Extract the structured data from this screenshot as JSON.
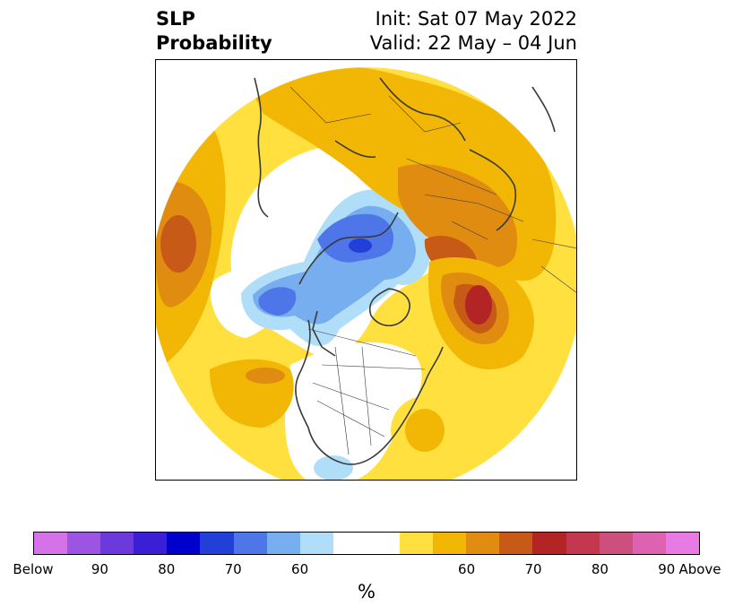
{
  "title": {
    "left_line1": "SLP",
    "left_line2": "Probability",
    "right_line1": "Init: Sat 07 May 2022",
    "right_line2": "Valid: 22 May – 04 Jun"
  },
  "colorbar": {
    "colors": [
      "#d672e8",
      "#9c55e3",
      "#6b39dc",
      "#3a1fd6",
      "#0000cc",
      "#2240d8",
      "#4e76e8",
      "#77aef0",
      "#b0def9",
      "#ffffff",
      "#ffe03f",
      "#f2b705",
      "#e08c10",
      "#c85a18",
      "#b32425",
      "#c4384f",
      "#cc4f7e",
      "#dd62b0",
      "#e87ae3"
    ],
    "labels": [
      "Below",
      "90",
      "80",
      "70",
      "60",
      "60",
      "70",
      "80",
      "90",
      "Above"
    ],
    "unit": "%"
  },
  "legend_meaning": {
    "blue": "below-normal sea level pressure probability",
    "yellow_red": "above-normal sea level pressure probability"
  }
}
